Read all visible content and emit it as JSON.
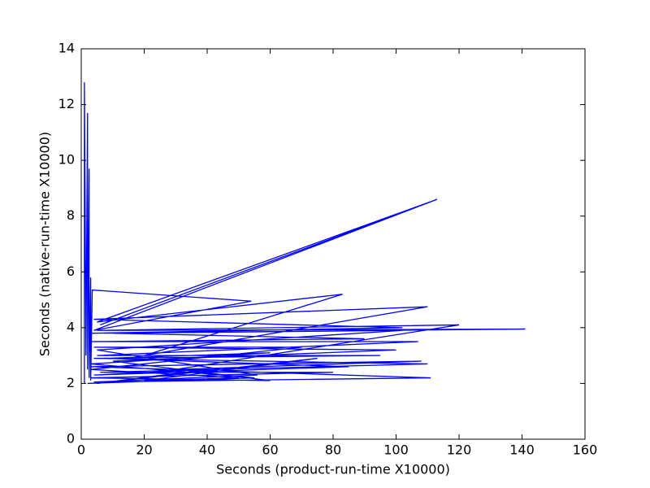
{
  "chart_data": {
    "type": "line",
    "x_label": "Seconds (product-run-time X10000)",
    "y_label": "Seconds (native-run-time X10000)",
    "x": [
      1,
      1,
      1.5,
      2,
      2,
      2.5,
      2.5,
      3,
      3,
      3.5,
      54,
      4,
      113,
      6,
      113,
      5,
      83,
      20,
      110,
      4,
      102,
      3,
      141,
      5,
      120,
      30,
      108,
      3,
      111,
      4,
      56,
      5,
      102,
      10,
      90,
      3,
      107,
      5,
      95,
      4,
      110,
      6,
      80,
      3,
      60,
      10,
      100,
      4,
      70,
      3,
      50,
      20,
      75,
      5,
      40,
      4,
      85,
      8,
      60,
      3,
      55,
      2
    ],
    "series": [
      {
        "name": "native-run-time",
        "color": "#0000ff",
        "values": [
          2.0,
          12.8,
          3,
          11.7,
          2.5,
          9.7,
          2.2,
          5.8,
          2.1,
          5.35,
          4.95,
          3.9,
          8.6,
          4.1,
          8.6,
          4.2,
          5.2,
          3,
          4.75,
          4.3,
          4.0,
          3.8,
          3.95,
          3.9,
          4.1,
          2.5,
          2.8,
          2.6,
          2.2,
          2.05,
          2.3,
          3.2,
          3.9,
          3.8,
          3.6,
          3.5,
          3.5,
          3.0,
          3.0,
          2.9,
          2.7,
          2.4,
          2.4,
          2.2,
          2.1,
          2.8,
          3.2,
          3.3,
          3.3,
          2.5,
          2.2,
          2.1,
          2.9,
          2.0,
          2.5,
          2.3,
          2.6,
          2.9,
          3.1,
          2.7,
          2.2,
          2.0
        ]
      }
    ],
    "xlim": [
      0,
      160
    ],
    "xticks": [
      0,
      20,
      40,
      60,
      80,
      100,
      120,
      140,
      160
    ],
    "ylim": [
      0,
      14
    ],
    "yticks": [
      0,
      2,
      4,
      6,
      8,
      10,
      12,
      14
    ]
  }
}
